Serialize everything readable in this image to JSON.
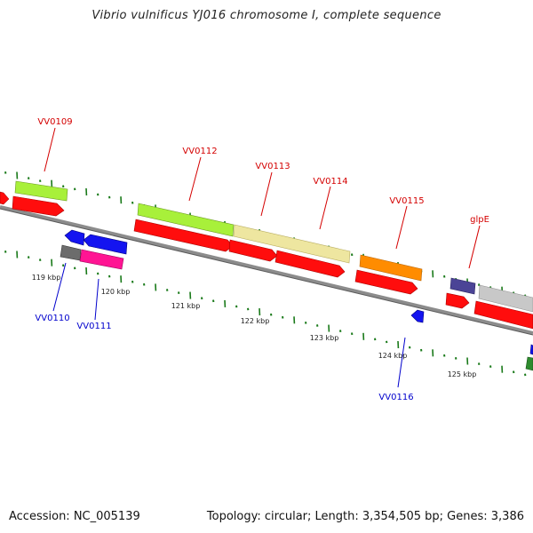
{
  "title": "Vibrio vulnificus YJ016 chromosome I, complete sequence",
  "footer": {
    "accession": "Accession: NC_005139",
    "summary": "Topology: circular; Length: 3,354,505 bp; Genes: 3,386"
  },
  "colors": {
    "backbone": "#8c8c8c",
    "tick": "#1a7a1a",
    "forward_label": "#d40000",
    "reverse_label": "#0000cc",
    "cds_red": "#ff0d0d",
    "gene_lime": "#a8f03a",
    "gene_khaki": "#eee6a0",
    "gene_orange": "#ff8c00",
    "gene_gray": "#c8c8c8",
    "gene_slate": "#4b4496",
    "gene_darkgray": "#6c6c6c",
    "gene_pink": "#ff1493",
    "gene_blue": "#1414f0",
    "gene_green": "#2e8b2e"
  },
  "scale_labels": [
    "119 kbp",
    "120 kbp",
    "121 kbp",
    "122 kbp",
    "123 kbp",
    "124 kbp",
    "125 kbp"
  ],
  "forward_genes": [
    {
      "label": "VV0109",
      "color_key": "gene_lime"
    },
    {
      "label": "VV0112",
      "color_key": "gene_lime"
    },
    {
      "label": "VV0113",
      "color_key": "gene_khaki"
    },
    {
      "label": "VV0114",
      "color_key": "gene_khaki"
    },
    {
      "label": "VV0115",
      "color_key": "gene_orange"
    },
    {
      "label": "glpE",
      "color_key": "gene_slate"
    }
  ],
  "reverse_genes": [
    {
      "label": "VV0110",
      "color_key": "gene_darkgray"
    },
    {
      "label": "VV0111",
      "color_key": "gene_pink"
    },
    {
      "label": "VV0116",
      "color_key": "gene_blue"
    }
  ]
}
